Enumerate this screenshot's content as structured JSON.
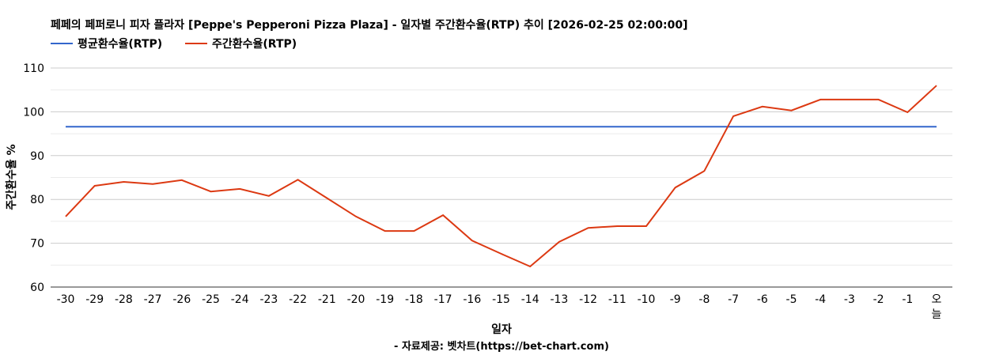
{
  "chart_data": {
    "type": "line",
    "title": "페페의 페퍼로니 피자 플라자 [Peppe's Pepperoni Pizza Plaza] - 일자별 주간환수율(RTP) 추이 [2026-02-25 02:00:00]",
    "xlabel": "일자",
    "ylabel": "주간환수율 %",
    "footer": "- 자료제공: 벳차트(https://bet-chart.com)",
    "ylim": [
      60,
      110
    ],
    "yticks": [
      60,
      70,
      80,
      90,
      100,
      110
    ],
    "grid": true,
    "legend_position": "top-left",
    "categories": [
      "-30",
      "-29",
      "-28",
      "-27",
      "-26",
      "-25",
      "-24",
      "-23",
      "-22",
      "-21",
      "-20",
      "-19",
      "-18",
      "-17",
      "-16",
      "-15",
      "-14",
      "-13",
      "-12",
      "-11",
      "-10",
      "-9",
      "-8",
      "-7",
      "-6",
      "-5",
      "-4",
      "-3",
      "-2",
      "-1",
      "오늘"
    ],
    "series": [
      {
        "name": "평균환수율(RTP)",
        "color": "#3366cc",
        "values": [
          96.6,
          96.6,
          96.6,
          96.6,
          96.6,
          96.6,
          96.6,
          96.6,
          96.6,
          96.6,
          96.6,
          96.6,
          96.6,
          96.6,
          96.6,
          96.6,
          96.6,
          96.6,
          96.6,
          96.6,
          96.6,
          96.6,
          96.6,
          96.6,
          96.6,
          96.6,
          96.6,
          96.6,
          96.6,
          96.6,
          96.6
        ]
      },
      {
        "name": "주간환수율(RTP)",
        "color": "#dc3912",
        "values": [
          76.1,
          83.1,
          84.0,
          83.5,
          84.4,
          81.8,
          82.4,
          80.8,
          84.5,
          80.3,
          76.1,
          72.8,
          72.8,
          76.4,
          70.6,
          67.6,
          64.7,
          70.3,
          73.5,
          73.9,
          73.9,
          82.7,
          86.5,
          99.0,
          101.2,
          100.3,
          102.8,
          102.8,
          102.8,
          99.9,
          106.0
        ]
      }
    ]
  }
}
